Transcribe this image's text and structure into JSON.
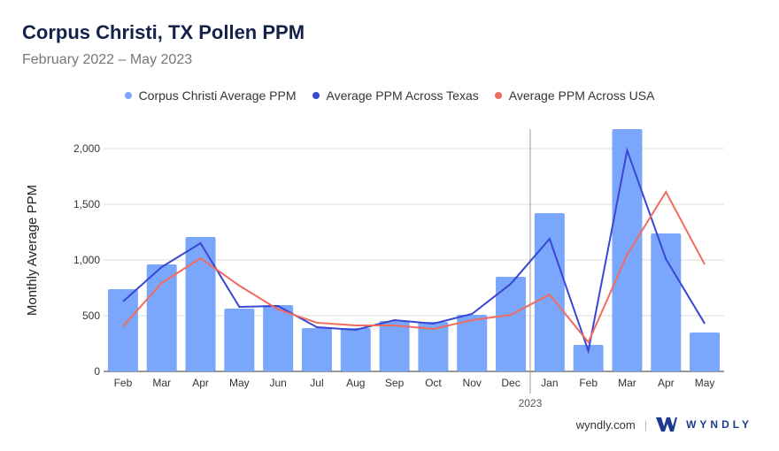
{
  "title": "Corpus Christi, TX Pollen PPM",
  "subtitle": "February 2022 – May 2023",
  "footer": {
    "site": "wyndly.com",
    "brand": "WYNDLY"
  },
  "chart_data": {
    "type": "bar",
    "ylabel": "Monthly Average PPM",
    "ylim": [
      0,
      2200
    ],
    "yticks": [
      0,
      500,
      1000,
      1500,
      2000
    ],
    "ytick_labels": [
      "0",
      "500",
      "1,000",
      "1,500",
      "2,000"
    ],
    "grid": true,
    "legend_position": "top",
    "categories": [
      "Feb",
      "Mar",
      "Apr",
      "May",
      "Jun",
      "Jul",
      "Aug",
      "Sep",
      "Oct",
      "Nov",
      "Dec",
      "Jan",
      "Feb",
      "Mar",
      "Apr",
      "May"
    ],
    "year_marker": {
      "label": "2023",
      "before_index": 11
    },
    "series": [
      {
        "name": "Corpus Christi Average PPM",
        "type": "bar",
        "color": "#7aa7fb",
        "values": [
          738,
          960,
          1206,
          563,
          595,
          389,
          389,
          452,
          444,
          508,
          849,
          1421,
          238,
          2175,
          1238,
          349
        ]
      },
      {
        "name": "Average PPM Across Texas",
        "type": "line",
        "color": "#3a46d4",
        "values": [
          627,
          937,
          1151,
          579,
          587,
          397,
          373,
          460,
          429,
          516,
          786,
          1190,
          183,
          1984,
          1008,
          429
        ]
      },
      {
        "name": "Average PPM Across USA",
        "type": "line",
        "color": "#f26b5f",
        "values": [
          405,
          794,
          1016,
          770,
          556,
          437,
          413,
          413,
          381,
          460,
          508,
          690,
          262,
          1048,
          1611,
          960
        ]
      }
    ]
  }
}
